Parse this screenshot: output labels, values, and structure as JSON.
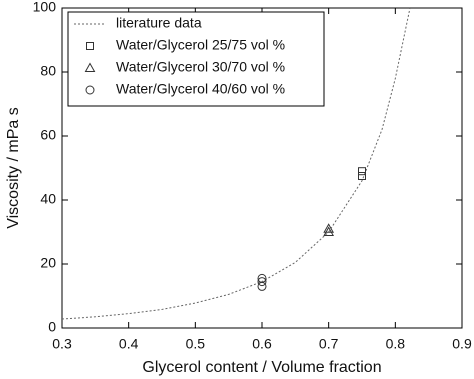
{
  "chart_data": {
    "type": "scatter",
    "x_label": "Glycerol content / Volume fraction",
    "y_label": "Viscosity / mPa s",
    "xlim": [
      0.3,
      0.9
    ],
    "xticks": [
      0.3,
      0.4,
      0.5,
      0.6,
      0.7,
      0.8,
      0.9
    ],
    "ylim": [
      0,
      100
    ],
    "yticks": [
      0,
      20,
      40,
      60,
      80,
      100
    ],
    "legend": "top-left",
    "series": [
      {
        "name": "literature data",
        "style": "dashed-line",
        "color": "#666666",
        "x": [
          0.3,
          0.35,
          0.4,
          0.45,
          0.5,
          0.55,
          0.6,
          0.65,
          0.7,
          0.75,
          0.78,
          0.8,
          0.822
        ],
        "values": [
          2.8,
          3.5,
          4.5,
          5.8,
          7.8,
          10.5,
          14.5,
          20.5,
          30,
          46,
          62,
          78,
          100
        ]
      },
      {
        "name": "Water/Glycerol 25/75 vol %",
        "style": "square",
        "color": "#333333",
        "x": [
          0.75,
          0.75
        ],
        "values": [
          47.5,
          49
        ]
      },
      {
        "name": "Water/Glycerol 30/70 vol %",
        "style": "triangle",
        "color": "#333333",
        "x": [
          0.7,
          0.7
        ],
        "values": [
          30,
          31
        ]
      },
      {
        "name": "Water/Glycerol 40/60 vol %",
        "style": "circle",
        "color": "#333333",
        "x": [
          0.6,
          0.6,
          0.6
        ],
        "values": [
          13,
          14.5,
          15.5
        ]
      }
    ]
  }
}
